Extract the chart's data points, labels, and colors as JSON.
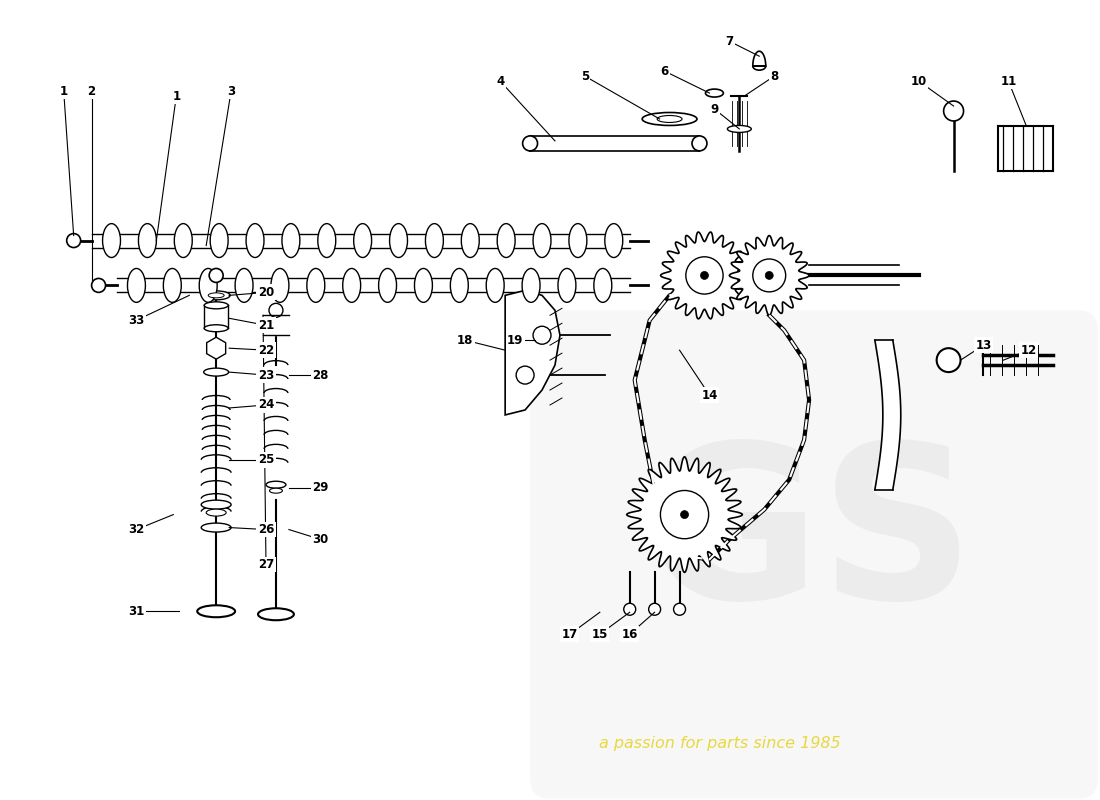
{
  "bg_color": "#ffffff",
  "watermark_line1": "a passion for parts since 1985",
  "watermark_color": "#e8d840",
  "label_color": "#000000",
  "line_color": "#000000",
  "figsize": [
    11.0,
    8.0
  ],
  "dpi": 100
}
